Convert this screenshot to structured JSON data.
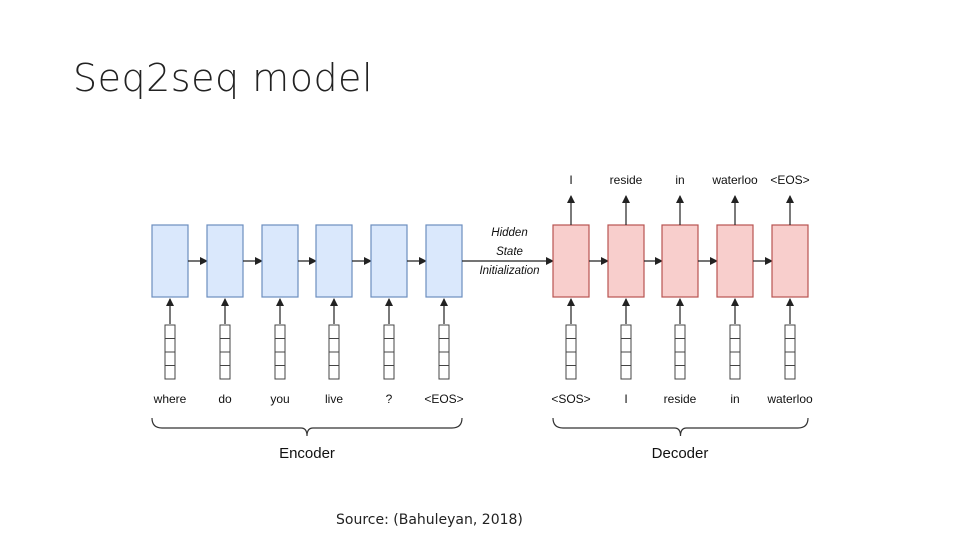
{
  "slide": {
    "title": "Seq2seq model",
    "source": "Source: (Bahuleyan, 2018)"
  },
  "diagram": {
    "encoder_inputs": [
      "where",
      "do",
      "you",
      "live",
      "?",
      "<EOS>"
    ],
    "decoder_inputs": [
      "<SOS>",
      "I",
      "reside",
      "in",
      "waterloo"
    ],
    "decoder_outputs": [
      "I",
      "reside",
      "in",
      "waterloo",
      "<EOS>"
    ],
    "bridge_lines": [
      "Hidden",
      "State",
      "Initialization"
    ],
    "encoder_label": "Encoder",
    "decoder_label": "Decoder",
    "colors": {
      "encoder_fill": "#dae8fc",
      "encoder_stroke": "#6c8ebf",
      "decoder_fill": "#f8cecc",
      "decoder_stroke": "#b85450",
      "arrow": "#222222"
    }
  }
}
